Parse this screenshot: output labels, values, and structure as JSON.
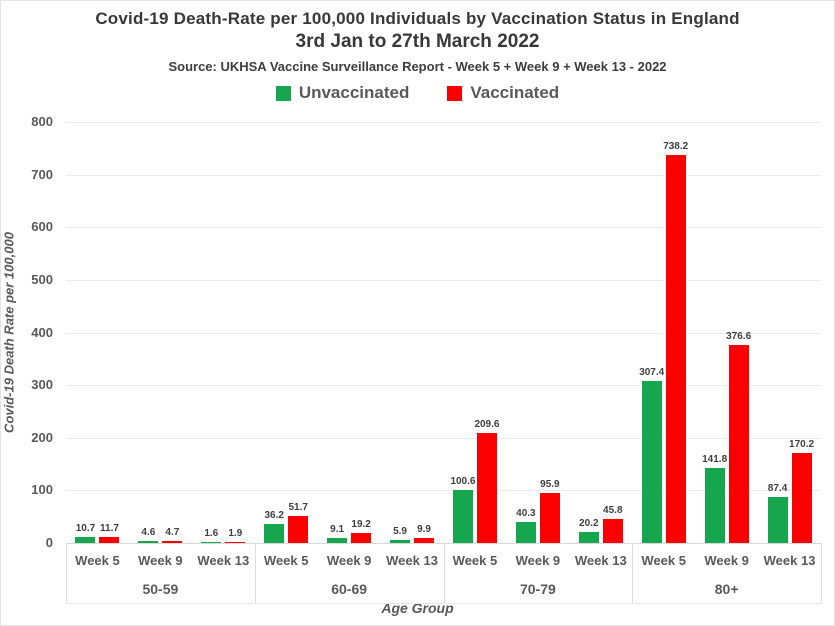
{
  "chart_data": {
    "type": "bar",
    "title": "Covid-19 Death-Rate per 100,000 Individuals by Vaccination Status in England",
    "subtitle": "3rd Jan to 27th March 2022",
    "source": "Source: UKHSA Vaccine Surveillance Report - Week 5 + Week 9 + Week 13 - 2022",
    "xlabel": "Age Group",
    "ylabel": "Covid-19 Death Rate per 100,000",
    "ylim": [
      0,
      800
    ],
    "ytick_step": 100,
    "grid": true,
    "legend_position": "top",
    "age_groups": [
      "50-59",
      "60-69",
      "70-79",
      "80+"
    ],
    "weeks": [
      "Week 5",
      "Week 9",
      "Week 13"
    ],
    "series": [
      {
        "name": "Unvaccinated",
        "color": "#16a64d",
        "values": [
          10.7,
          4.6,
          1.6,
          36.2,
          9.1,
          5.9,
          100.6,
          40.3,
          20.2,
          307.4,
          141.8,
          87.4
        ]
      },
      {
        "name": "Vaccinated",
        "color": "#fb0000",
        "values": [
          11.7,
          4.7,
          1.9,
          51.7,
          19.2,
          9.9,
          209.6,
          95.9,
          45.8,
          738.2,
          376.6,
          170.2
        ]
      }
    ]
  }
}
